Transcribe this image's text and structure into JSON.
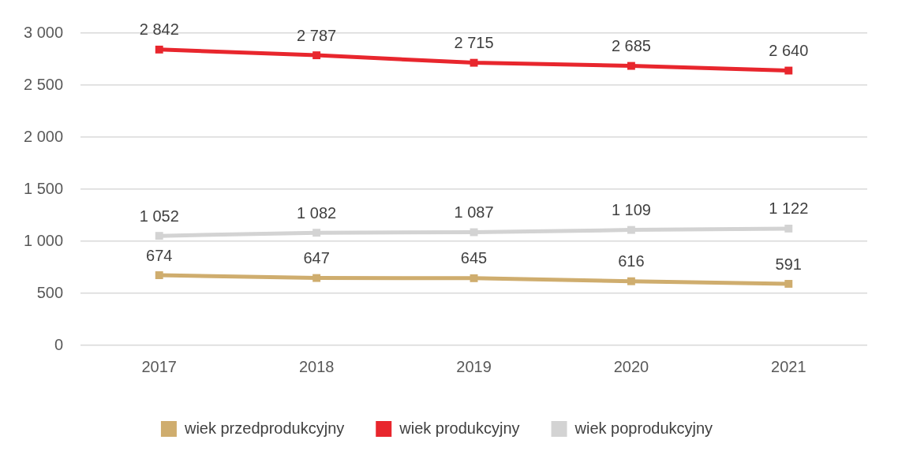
{
  "chart_data": {
    "type": "line",
    "categories": [
      "2017",
      "2018",
      "2019",
      "2020",
      "2021"
    ],
    "series": [
      {
        "name": "wiek przedprodukcyjny",
        "color": "#cfad6e",
        "values": [
          674,
          647,
          645,
          616,
          591
        ],
        "value_labels": [
          "674",
          "647",
          "645",
          "616",
          "591"
        ]
      },
      {
        "name": "wiek produkcyjny",
        "color": "#e8262d",
        "values": [
          2842,
          2787,
          2715,
          2685,
          2640
        ],
        "value_labels": [
          "2 842",
          "2 787",
          "2 715",
          "2 685",
          "2 640"
        ]
      },
      {
        "name": "wiek poprodukcyjny",
        "color": "#d3d3d3",
        "values": [
          1052,
          1082,
          1087,
          1109,
          1122
        ],
        "value_labels": [
          "1 052",
          "1 082",
          "1 087",
          "1 109",
          "1 122"
        ]
      }
    ],
    "ylim": [
      0,
      3000
    ],
    "yticks": [
      0,
      {
        "value": 500,
        "label": "500"
      },
      {
        "value": 1000,
        "label": "1 000"
      },
      {
        "value": 1500,
        "label": "1 500"
      },
      {
        "value": 2000,
        "label": "2 000"
      },
      {
        "value": 2500,
        "label": "2 500"
      },
      {
        "value": 3000,
        "label": "3 000"
      }
    ],
    "grid": "y",
    "legend": "bottom",
    "marker": "square",
    "line_style": "solid"
  }
}
